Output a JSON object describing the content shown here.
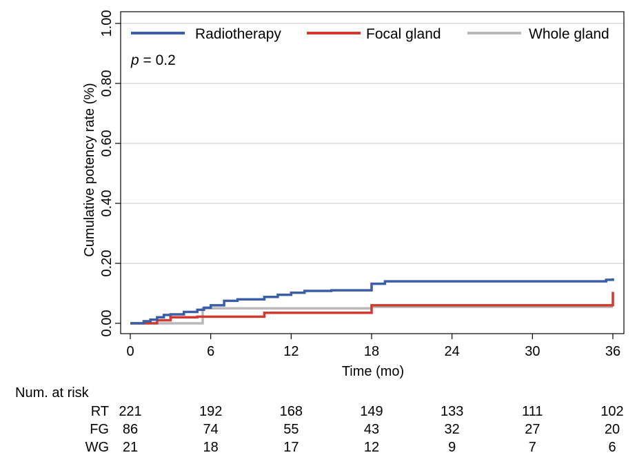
{
  "chart_data": {
    "type": "line",
    "subtype": "step",
    "xlabel": "Time (mo)",
    "ylabel": "Cumulative potency rate (%)",
    "xlim": [
      0,
      36
    ],
    "ylim": [
      0,
      1
    ],
    "xticks": [
      0,
      6,
      12,
      18,
      24,
      30,
      36
    ],
    "yticks": [
      0,
      0.2,
      0.4,
      0.6,
      0.8,
      1.0
    ],
    "yticklabels": [
      "0.00",
      "0.20",
      "0.40",
      "0.60",
      "0.80",
      "1.00"
    ],
    "grid": true,
    "legend": "top",
    "annotation": {
      "italic": "p",
      "rest": " = 0.2"
    },
    "series": [
      {
        "name": "Radiotherapy",
        "color": "#3a5fa8",
        "points": [
          [
            0,
            0
          ],
          [
            1,
            0.007
          ],
          [
            1.5,
            0.012
          ],
          [
            2,
            0.02
          ],
          [
            2.5,
            0.028
          ],
          [
            3,
            0.03
          ],
          [
            4,
            0.038
          ],
          [
            5,
            0.045
          ],
          [
            5.5,
            0.052
          ],
          [
            6,
            0.06
          ],
          [
            7,
            0.075
          ],
          [
            8,
            0.08
          ],
          [
            10,
            0.088
          ],
          [
            11,
            0.095
          ],
          [
            12,
            0.102
          ],
          [
            13,
            0.108
          ],
          [
            15,
            0.11
          ],
          [
            18,
            0.132
          ],
          [
            19,
            0.14
          ],
          [
            36,
            0.145
          ],
          [
            35.5,
            0.145
          ],
          [
            36,
            0.15
          ]
        ]
      },
      {
        "name": "Focal gland",
        "color": "#d03a2f",
        "points": [
          [
            0,
            0
          ],
          [
            2,
            0.01
          ],
          [
            3,
            0.02
          ],
          [
            5,
            0.022
          ],
          [
            10,
            0.035
          ],
          [
            18,
            0.06
          ],
          [
            35.5,
            0.06
          ],
          [
            36,
            0.105
          ]
        ]
      },
      {
        "name": "Whole gland",
        "color": "#b8b8b8",
        "points": [
          [
            0,
            0
          ],
          [
            5.4,
            0.05
          ],
          [
            18,
            0.055
          ],
          [
            36,
            0.055
          ]
        ]
      }
    ]
  },
  "risk_table": {
    "title": "Num. at risk",
    "times": [
      0,
      6,
      12,
      18,
      24,
      30,
      36
    ],
    "rows": [
      {
        "label": "RT",
        "values": [
          "221",
          "192",
          "168",
          "149",
          "133",
          "111",
          "102"
        ]
      },
      {
        "label": "FG",
        "values": [
          "86",
          "74",
          "55",
          "43",
          "32",
          "27",
          "20"
        ]
      },
      {
        "label": "WG",
        "values": [
          "21",
          "18",
          "17",
          "12",
          "9",
          "7",
          "6"
        ]
      }
    ]
  }
}
